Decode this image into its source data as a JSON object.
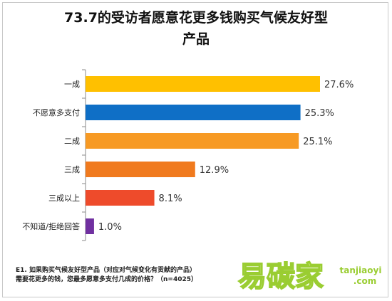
{
  "chart_data": {
    "type": "bar",
    "orientation": "horizontal",
    "title_lines": [
      "73.7的受访者愿意花更多钱购买气候友好型",
      "产品"
    ],
    "categories": [
      "一成",
      "不愿意多支付",
      "二成",
      "三成",
      "三成以上",
      "不知道/拒绝回答"
    ],
    "values": [
      27.6,
      25.3,
      25.1,
      12.9,
      8.1,
      1.0
    ],
    "value_labels": [
      "27.6%",
      "25.3%",
      "25.1%",
      "12.9%",
      "8.1%",
      "1.0%"
    ],
    "colors": [
      "#FFC000",
      "#0F6FC6",
      "#F79A24",
      "#F07A1E",
      "#EE4B2B",
      "#7030A0"
    ],
    "xlim": [
      0,
      30
    ],
    "grid": false,
    "legend": "none"
  },
  "footnote": {
    "line1": "E1. 如果购买气候友好型产品（对应对气候变化有贡献的产品）",
    "line2": "需要花更多的钱，您最多愿意多支付几成的价格？（n=4025）"
  },
  "watermark": {
    "main": "易碳家",
    "domain": "tanjiaoyi",
    "suffix": ".com",
    "color": "#9ACD32"
  }
}
